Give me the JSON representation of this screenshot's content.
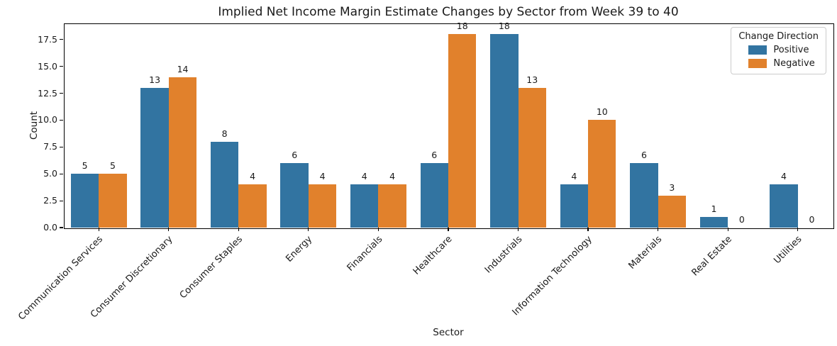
{
  "chart_data": {
    "type": "bar",
    "title": "Implied Net Income Margin Estimate Changes by Sector from Week 39 to 40",
    "xlabel": "Sector",
    "ylabel": "Count",
    "categories": [
      "Communication Services",
      "Consumer Discretionary",
      "Consumer Staples",
      "Energy",
      "Financials",
      "Healthcare",
      "Industrials",
      "Information Technology",
      "Materials",
      "Real Estate",
      "Utilities"
    ],
    "series": [
      {
        "name": "Positive",
        "color": "#3274a1",
        "values": [
          5,
          13,
          8,
          6,
          4,
          6,
          18,
          4,
          6,
          1,
          4
        ]
      },
      {
        "name": "Negative",
        "color": "#e1812c",
        "values": [
          5,
          14,
          4,
          4,
          4,
          18,
          13,
          10,
          3,
          0,
          0
        ]
      }
    ],
    "legend": {
      "title": "Change Direction",
      "position": "upper right"
    },
    "ytick_labels": [
      "0.0",
      "2.5",
      "5.0",
      "7.5",
      "10.0",
      "12.5",
      "15.0",
      "17.5"
    ],
    "yticks": [
      0,
      2.5,
      5,
      7.5,
      10,
      12.5,
      15,
      17.5
    ],
    "ylim": [
      0,
      19
    ],
    "grid": false,
    "bar_value_labels": true,
    "colors": {
      "spine": "#000000",
      "text": "#1a1a1a",
      "legend_border": "#cccccc"
    }
  }
}
